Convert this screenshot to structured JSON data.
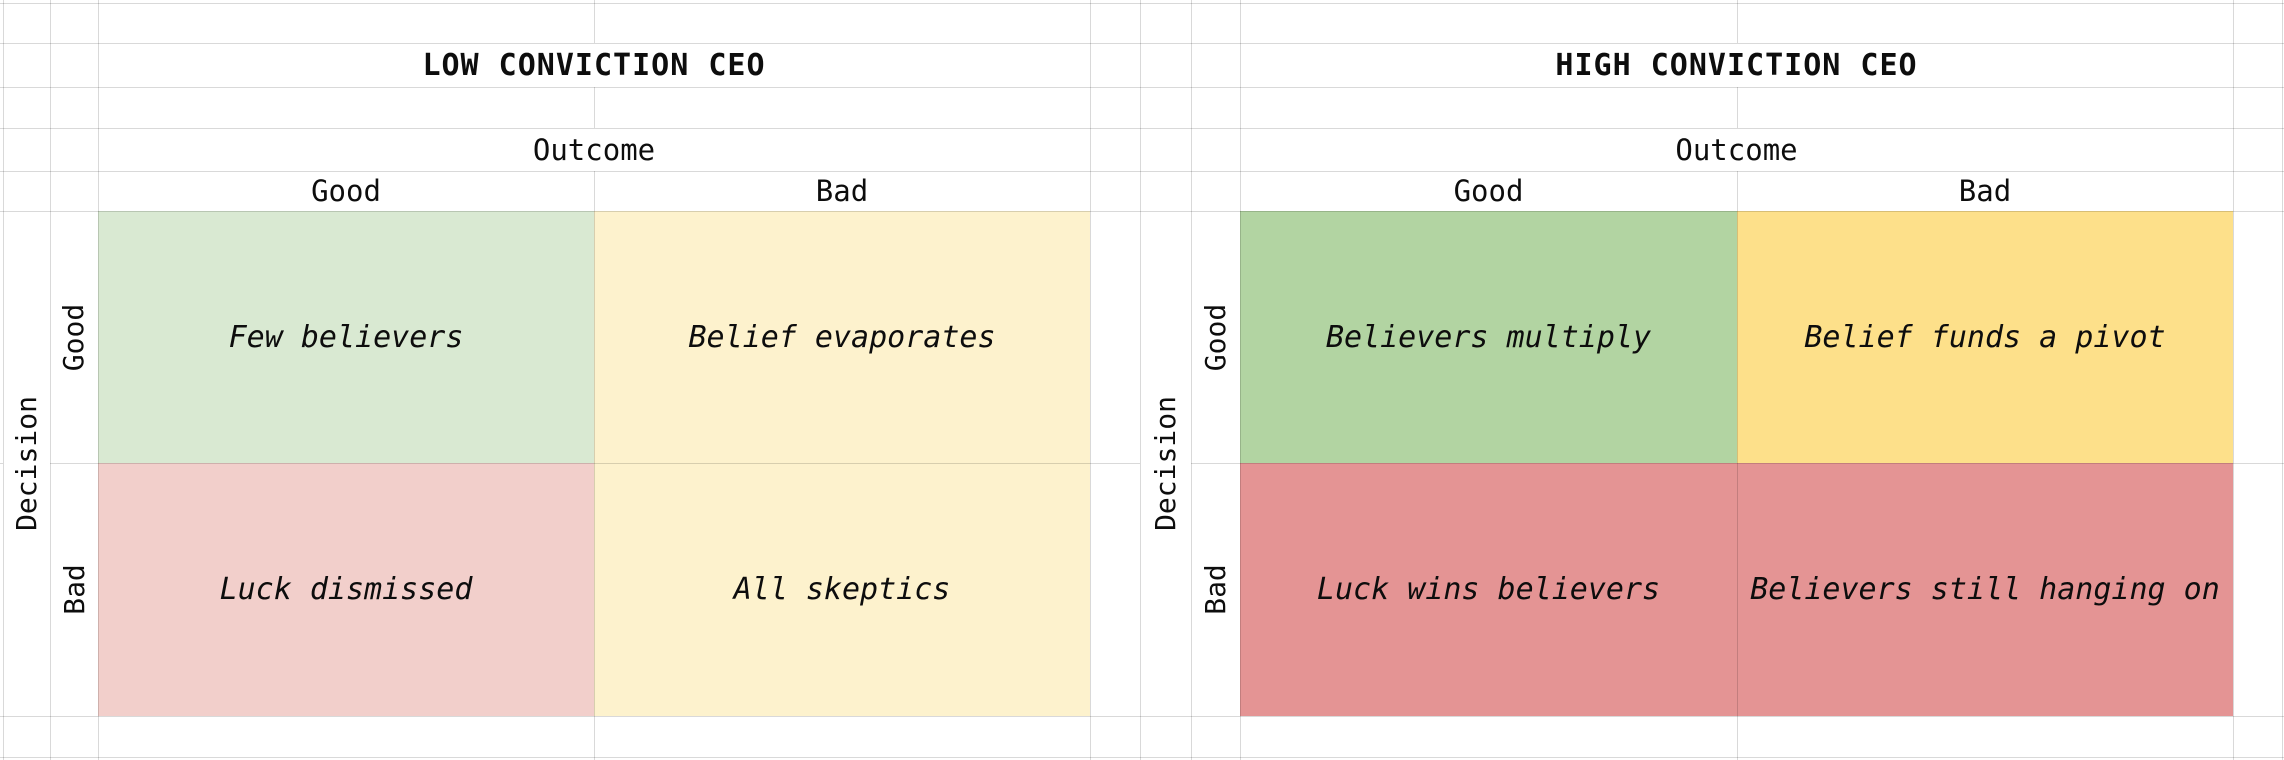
{
  "sheet": {
    "kind": "spreadsheet-2x2-decision-matrices",
    "text_color": "#0d0d0d",
    "matrices": [
      {
        "id": "low-conviction",
        "title": "LOW CONVICTION CEO",
        "axis_top": "Outcome",
        "axis_left": "Decision",
        "col_headers": [
          "Good",
          "Bad"
        ],
        "row_headers": [
          "Good",
          "Bad"
        ],
        "quadrants": [
          {
            "decision": "Good",
            "outcome": "Good",
            "label": "Few believers",
            "bg": "#d9e9d2"
          },
          {
            "decision": "Good",
            "outcome": "Bad",
            "label": "Belief evaporates",
            "bg": "#fdf2cd"
          },
          {
            "decision": "Bad",
            "outcome": "Good",
            "label": "Luck dismissed",
            "bg": "#f2cfcb"
          },
          {
            "decision": "Bad",
            "outcome": "Bad",
            "label": "All skeptics",
            "bg": "#fdf2cd"
          }
        ]
      },
      {
        "id": "high-conviction",
        "title": "HIGH CONVICTION CEO",
        "axis_top": "Outcome",
        "axis_left": "Decision",
        "col_headers": [
          "Good",
          "Bad"
        ],
        "row_headers": [
          "Good",
          "Bad"
        ],
        "quadrants": [
          {
            "decision": "Good",
            "outcome": "Good",
            "label": "Believers multiply",
            "bg": "#b2d4a2"
          },
          {
            "decision": "Good",
            "outcome": "Bad",
            "label": "Belief funds a pivot",
            "bg": "#fde08a"
          },
          {
            "decision": "Bad",
            "outcome": "Good",
            "label": "Luck wins believers",
            "bg": "#e49494"
          },
          {
            "decision": "Bad",
            "outcome": "Bad",
            "label": "Believers still hanging on",
            "bg": "#e49494"
          }
        ]
      }
    ]
  }
}
